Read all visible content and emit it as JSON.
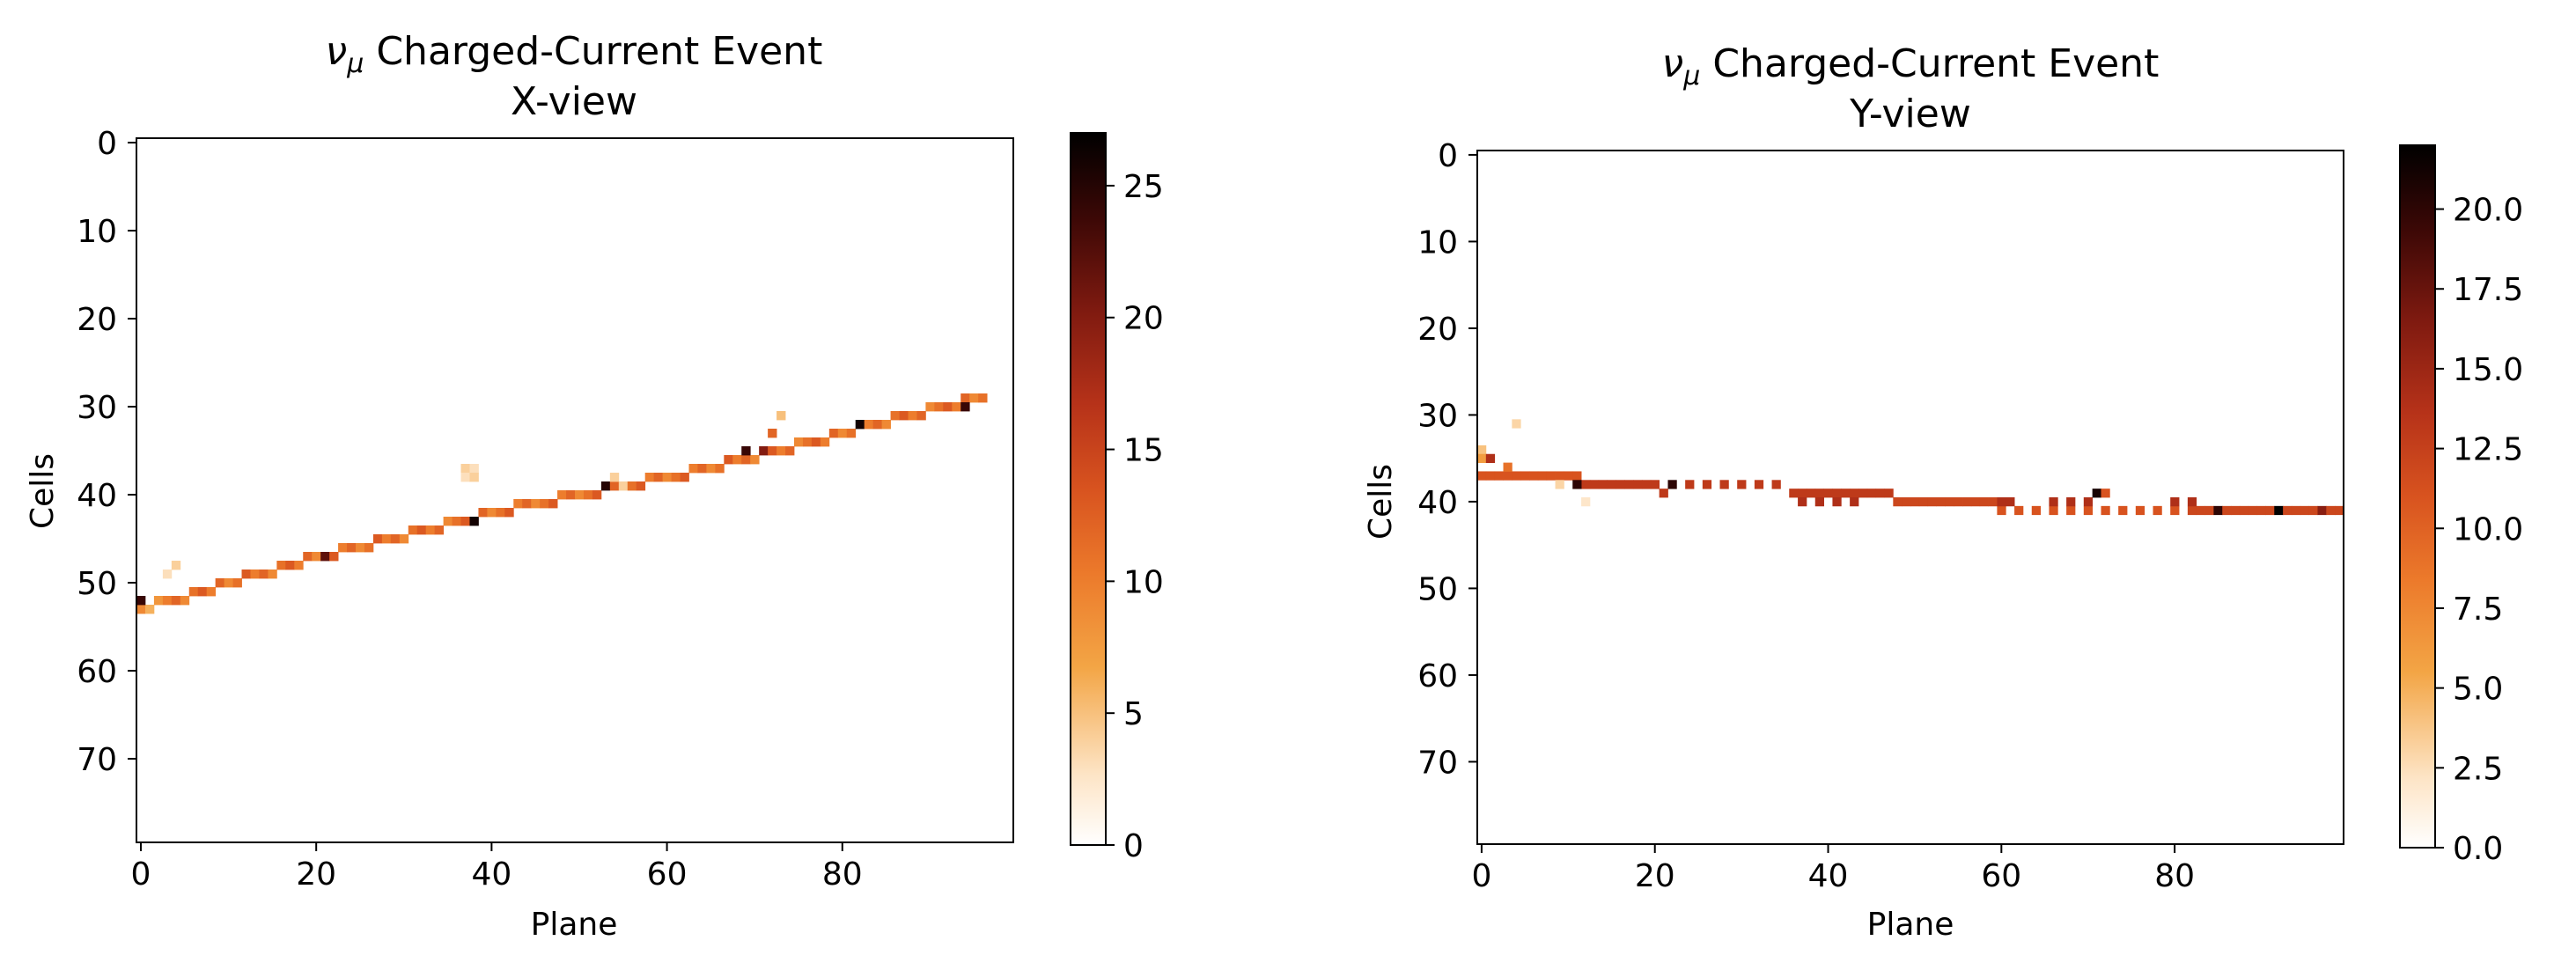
{
  "figure": {
    "title_particle": "ν",
    "title_sub": "μ"
  },
  "chart_data": [
    {
      "type": "heatmap",
      "title_main": "Charged-Current Event",
      "title_view": "X-view",
      "xlabel": "Plane",
      "ylabel": "Cells",
      "xlim": [
        -0.5,
        99.5
      ],
      "ylim": [
        79.5,
        -0.5
      ],
      "y_inverted": true,
      "xticks": [
        0,
        20,
        40,
        60,
        80
      ],
      "yticks": [
        0,
        10,
        20,
        30,
        40,
        50,
        60,
        70
      ],
      "colorbar": {
        "min": 0,
        "max": 27,
        "ticks": [
          0,
          5,
          10,
          15,
          20,
          25
        ],
        "tick_labels": [
          "0",
          "5",
          "10",
          "15",
          "20",
          "25"
        ],
        "colormap": "gist_heat_r"
      },
      "track_points": [
        [
          0,
          53
        ],
        [
          20,
          47
        ],
        [
          40,
          42
        ],
        [
          60,
          38
        ],
        [
          80,
          33
        ],
        [
          95,
          29
        ]
      ],
      "track_plane_range": [
        0,
        96
      ],
      "base_value": 11,
      "hits": [
        [
          0,
          52,
          24
        ],
        [
          1,
          53,
          6
        ],
        [
          2,
          52,
          8
        ],
        [
          3,
          49,
          3
        ],
        [
          4,
          48,
          4
        ],
        [
          21,
          47,
          22
        ],
        [
          37,
          37,
          4
        ],
        [
          37,
          38,
          3
        ],
        [
          38,
          43,
          26
        ],
        [
          38,
          37,
          3
        ],
        [
          38,
          38,
          4
        ],
        [
          53,
          39,
          25
        ],
        [
          54,
          38,
          4
        ],
        [
          55,
          39,
          4
        ],
        [
          69,
          35,
          24
        ],
        [
          71,
          35,
          20
        ],
        [
          72,
          33,
          12
        ],
        [
          73,
          31,
          5
        ],
        [
          82,
          32,
          26
        ],
        [
          94,
          30,
          24
        ]
      ]
    },
    {
      "type": "heatmap",
      "title_main": "Charged-Current Event",
      "title_view": "Y-view",
      "xlabel": "Plane",
      "ylabel": "Cells",
      "xlim": [
        -0.5,
        99.5
      ],
      "ylim": [
        79.5,
        -0.5
      ],
      "y_inverted": true,
      "xticks": [
        0,
        20,
        40,
        60,
        80
      ],
      "yticks": [
        0,
        10,
        20,
        30,
        40,
        50,
        60,
        70
      ],
      "colorbar": {
        "min": 0,
        "max": 22,
        "ticks": [
          0,
          2.5,
          5,
          7.5,
          10,
          12.5,
          15,
          17.5,
          20
        ],
        "tick_labels": [
          "0.0",
          "2.5",
          "5.0",
          "7.5",
          "10.0",
          "12.5",
          "15.0",
          "17.5",
          "20.0"
        ],
        "colormap": "gist_heat_r"
      },
      "segments": [
        {
          "from": 0,
          "to": 12,
          "cell": 37,
          "value": 13,
          "skip_odd": false
        },
        {
          "from": 12,
          "to": 20,
          "cell": 38,
          "value": 15,
          "skip_odd": false
        },
        {
          "from": 20,
          "to": 36,
          "cell": 38,
          "value": 15,
          "skip_odd": true
        },
        {
          "from": 36,
          "to": 48,
          "cell": 39,
          "value": 15,
          "skip_odd": false
        },
        {
          "from": 48,
          "to": 60,
          "cell": 40,
          "value": 14,
          "skip_odd": false
        },
        {
          "from": 60,
          "to": 82,
          "cell": 41,
          "value": 13,
          "skip_odd": true
        },
        {
          "from": 82,
          "to": 100,
          "cell": 41,
          "value": 14,
          "skip_odd": false
        }
      ],
      "hits": [
        [
          0,
          34,
          4
        ],
        [
          0,
          35,
          6
        ],
        [
          1,
          35,
          14
        ],
        [
          3,
          36,
          9
        ],
        [
          4,
          31,
          3
        ],
        [
          9,
          38,
          3
        ],
        [
          11,
          38,
          20
        ],
        [
          12,
          40,
          2
        ],
        [
          21,
          39,
          13
        ],
        [
          22,
          38,
          20
        ],
        [
          37,
          40,
          14
        ],
        [
          39,
          40,
          14
        ],
        [
          41,
          40,
          14
        ],
        [
          43,
          40,
          14
        ],
        [
          60,
          40,
          14
        ],
        [
          61,
          40,
          14
        ],
        [
          66,
          40,
          14
        ],
        [
          68,
          40,
          14
        ],
        [
          70,
          40,
          14
        ],
        [
          71,
          39,
          21
        ],
        [
          72,
          39,
          11
        ],
        [
          80,
          40,
          14
        ],
        [
          82,
          40,
          14
        ],
        [
          85,
          41,
          20
        ],
        [
          92,
          41,
          22
        ],
        [
          97,
          41,
          16
        ]
      ]
    }
  ]
}
